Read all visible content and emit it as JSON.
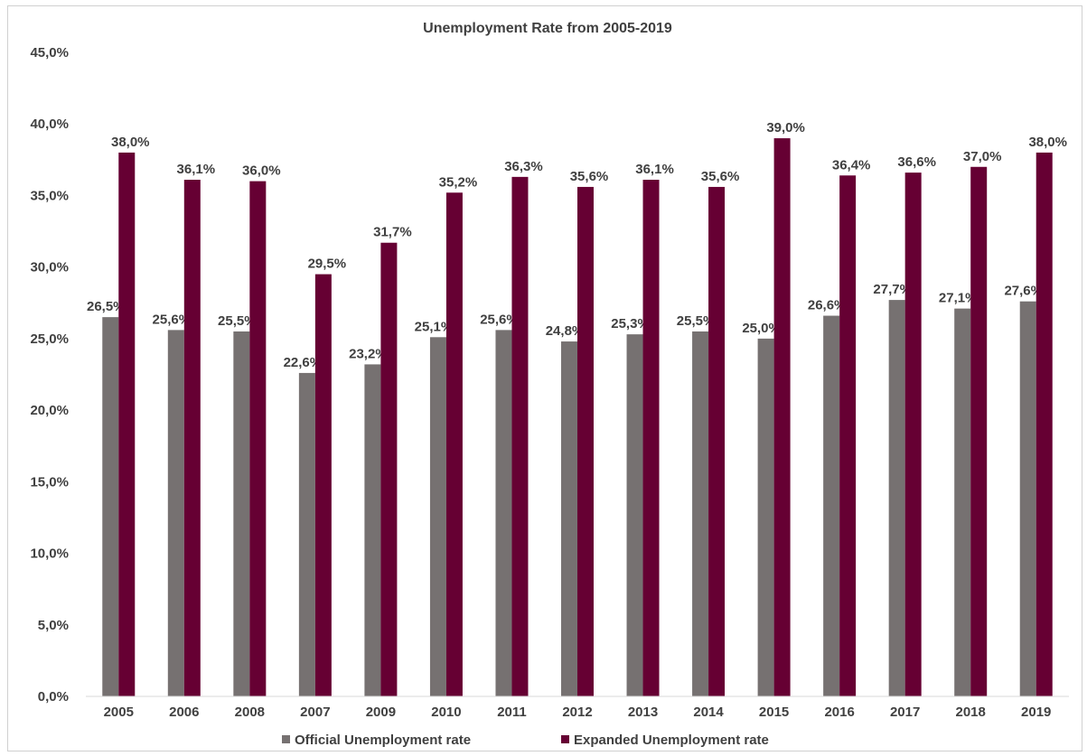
{
  "chart_data": {
    "type": "bar",
    "title": "Unemployment  Rate from 2005-2019",
    "categories": [
      "2005",
      "2006",
      "2008",
      "2007",
      "2009",
      "2010",
      "2011",
      "2012",
      "2013",
      "2014",
      "2015",
      "2016",
      "2017",
      "2018",
      "2019"
    ],
    "series": [
      {
        "name": "Official Unemployment rate",
        "color": "#767171",
        "values": [
          26.5,
          25.6,
          25.5,
          22.6,
          23.2,
          25.1,
          25.6,
          24.8,
          25.3,
          25.5,
          25.0,
          26.6,
          27.7,
          27.1,
          27.6
        ],
        "labels": [
          "26,5%",
          "25,6%",
          "25,5%",
          "22,6%",
          "23,2%",
          "25,1%",
          "25,6%",
          "24,8%",
          "25,3%",
          "25,5%",
          "25,0%",
          "26,6%",
          "27,7%",
          "27,1%",
          "27,6%"
        ]
      },
      {
        "name": "Expanded Unemployment rate",
        "color": "#660033",
        "values": [
          38.0,
          36.1,
          36.0,
          29.5,
          31.7,
          35.2,
          36.3,
          35.6,
          36.1,
          35.6,
          39.0,
          36.4,
          36.6,
          37.0,
          38.0
        ],
        "labels": [
          "38,0%",
          "36,1%",
          "36,0%",
          "29,5%",
          "31,7%",
          "35,2%",
          "36,3%",
          "35,6%",
          "36,1%",
          "35,6%",
          "39,0%",
          "36,4%",
          "36,6%",
          "37,0%",
          "38,0%"
        ]
      }
    ],
    "y_ticks": [
      0,
      5,
      10,
      15,
      20,
      25,
      30,
      35,
      40,
      45
    ],
    "y_tick_labels": [
      "0,0%",
      "5,0%",
      "10,0%",
      "15,0%",
      "20,0%",
      "25,0%",
      "30,0%",
      "35,0%",
      "40,0%",
      "45,0%"
    ],
    "ylim": [
      0,
      45
    ],
    "grid": false,
    "legend_position": "bottom"
  }
}
